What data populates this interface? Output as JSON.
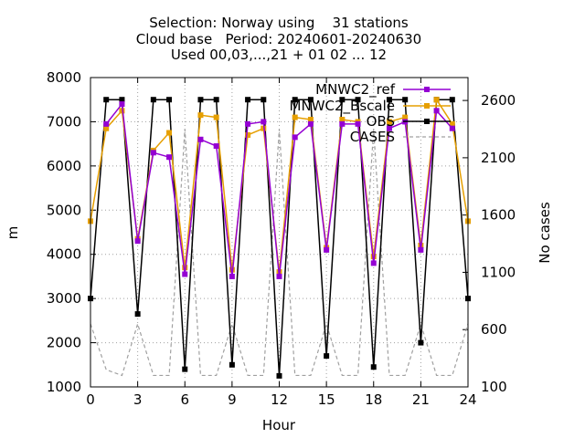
{
  "chart_data": {
    "type": "line",
    "title_lines": [
      "Selection: Norway using    31 stations",
      "Cloud base   Period: 20240601-20240630",
      "Used 00,03,...,21 + 01 02 ... 12"
    ],
    "xlabel": "Hour",
    "ylabel": "m",
    "y2label": "No cases",
    "xlim": [
      0,
      24
    ],
    "ylim": [
      1000,
      8000
    ],
    "y2lim": [
      100,
      2800
    ],
    "xticks": [
      "0",
      "3",
      "6",
      "9",
      "12",
      "15",
      "18",
      "21",
      "24"
    ],
    "yticks": [
      "1000",
      "2000",
      "3000",
      "4000",
      "5000",
      "6000",
      "7000",
      "8000"
    ],
    "y2ticks": [
      "100",
      "600",
      "1100",
      "1600",
      "2100",
      "2600"
    ],
    "grid": true,
    "legend_position": "top-right",
    "x": [
      0,
      1,
      2,
      3,
      4,
      5,
      6,
      7,
      8,
      9,
      10,
      11,
      12,
      13,
      14,
      15,
      16,
      17,
      18,
      19,
      20,
      21,
      22,
      23,
      24
    ],
    "series": [
      {
        "name": "MNWC2_ref",
        "color": "#9400d3",
        "marker": "plus",
        "values": [
          null,
          6950,
          7400,
          4300,
          6300,
          6200,
          3550,
          6600,
          6450,
          3500,
          6950,
          7000,
          3500,
          6650,
          6950,
          4100,
          6950,
          6950,
          3800,
          6850,
          7000,
          4100,
          7250,
          6850,
          null
        ]
      },
      {
        "name": "MNWC2_Bscale",
        "color": "#e69f00",
        "marker": "square",
        "values": [
          4750,
          6850,
          7250,
          4350,
          6350,
          6750,
          3700,
          7150,
          7100,
          3650,
          6700,
          6850,
          3600,
          7100,
          7050,
          4150,
          7050,
          7000,
          3950,
          7000,
          7100,
          4200,
          7500,
          6950,
          4750
        ]
      },
      {
        "name": "OBS",
        "color": "#000000",
        "marker": "square",
        "values": [
          3000,
          7500,
          7500,
          2650,
          7500,
          7500,
          1400,
          7500,
          7500,
          1500,
          7500,
          7500,
          1250,
          7500,
          7500,
          1700,
          7500,
          7500,
          1450,
          7500,
          7500,
          2000,
          7500,
          7500,
          3000
        ]
      },
      {
        "name": "CASES",
        "color": "#a0a0a0",
        "axis": "y2",
        "dashed": true,
        "values": [
          650,
          250,
          200,
          650,
          200,
          200,
          2350,
          200,
          200,
          650,
          200,
          200,
          2350,
          200,
          200,
          650,
          200,
          200,
          2350,
          200,
          200,
          650,
          200,
          200,
          650
        ]
      }
    ]
  }
}
